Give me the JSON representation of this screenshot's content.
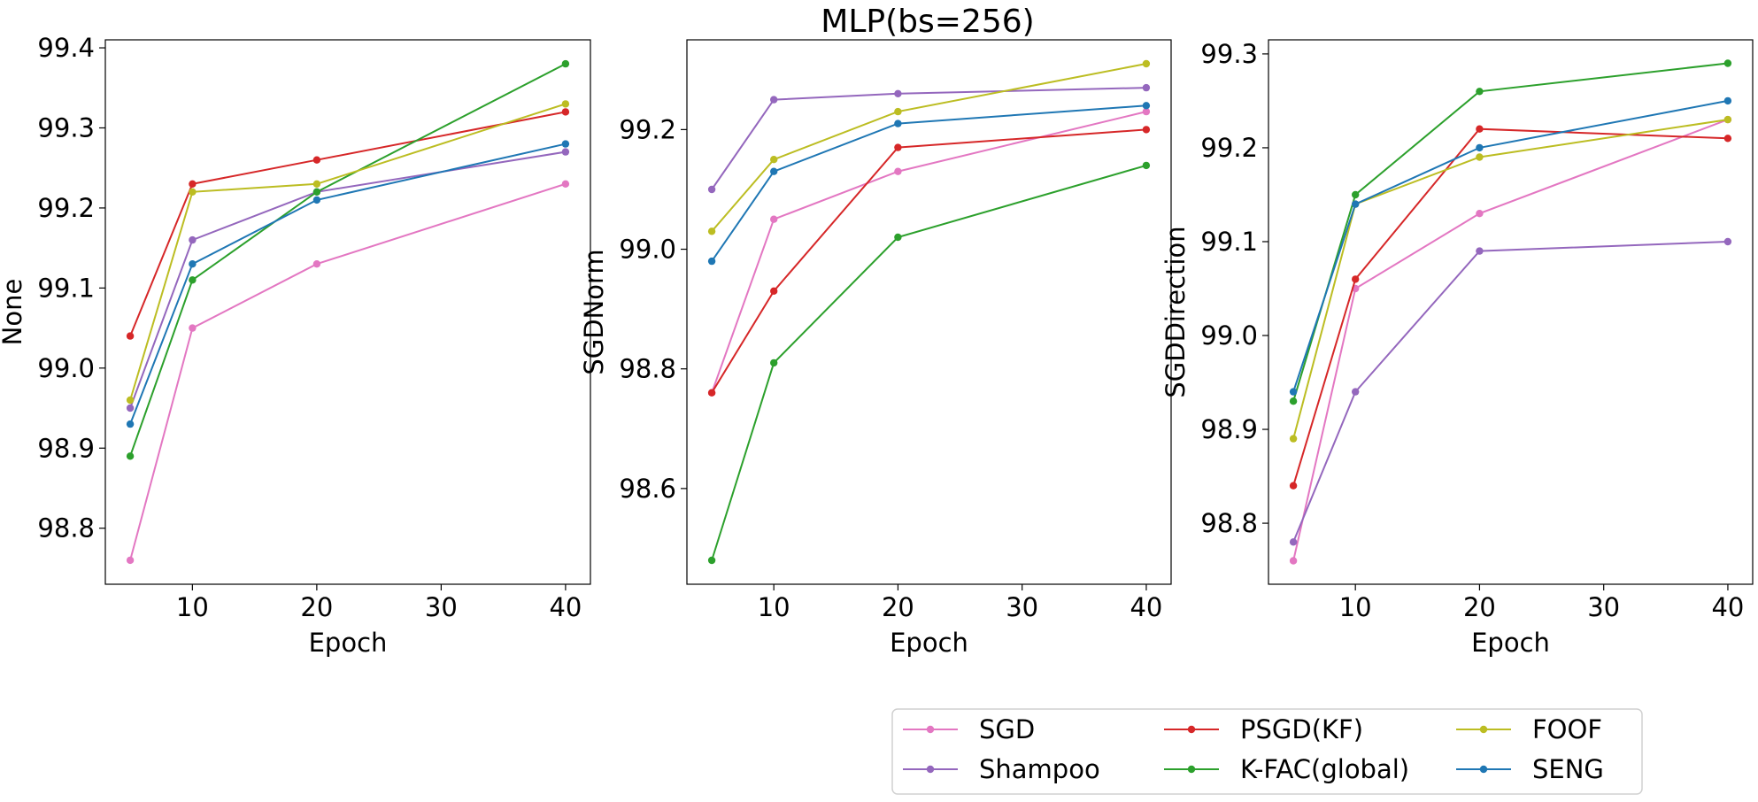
{
  "figure": {
    "title": "MLP(bs=256)"
  },
  "legend": {
    "placement": "bottom-right",
    "columns": 3
  },
  "chart_data": [
    {
      "type": "line",
      "xlabel": "Epoch",
      "ylabel": "None",
      "x": [
        5,
        10,
        20,
        40
      ],
      "xlim": [
        3,
        42
      ],
      "ylim": [
        98.73,
        99.41
      ],
      "xticks": [
        "10",
        "20",
        "30",
        "40"
      ],
      "yticks": [
        "98.8",
        "98.9",
        "99.0",
        "99.1",
        "99.2",
        "99.3",
        "99.4"
      ],
      "grid": false,
      "series": [
        {
          "name": "SGD",
          "color": "#e377c2",
          "values": [
            98.76,
            99.05,
            99.13,
            99.23
          ]
        },
        {
          "name": "Shampoo",
          "color": "#9467bd",
          "values": [
            98.95,
            99.16,
            99.22,
            99.27
          ]
        },
        {
          "name": "PSGD(KF)",
          "color": "#d62728",
          "values": [
            99.04,
            99.23,
            99.26,
            99.32
          ]
        },
        {
          "name": "K-FAC(global)",
          "color": "#2ca02c",
          "values": [
            98.89,
            99.11,
            99.22,
            99.38
          ]
        },
        {
          "name": "FOOF",
          "color": "#bcbd22",
          "values": [
            98.96,
            99.22,
            99.23,
            99.33
          ]
        },
        {
          "name": "SENG",
          "color": "#1f77b4",
          "values": [
            98.93,
            99.13,
            99.21,
            99.28
          ]
        }
      ]
    },
    {
      "type": "line",
      "xlabel": "Epoch",
      "ylabel": "SGDNorm",
      "x": [
        5,
        10,
        20,
        40
      ],
      "xlim": [
        3,
        42
      ],
      "ylim": [
        98.44,
        99.35
      ],
      "xticks": [
        "10",
        "20",
        "30",
        "40"
      ],
      "yticks": [
        "98.6",
        "98.8",
        "99.0",
        "99.2"
      ],
      "grid": false,
      "series": [
        {
          "name": "SGD",
          "color": "#e377c2",
          "values": [
            98.76,
            99.05,
            99.13,
            99.23
          ]
        },
        {
          "name": "Shampoo",
          "color": "#9467bd",
          "values": [
            99.1,
            99.25,
            99.26,
            99.27
          ]
        },
        {
          "name": "PSGD(KF)",
          "color": "#d62728",
          "values": [
            98.76,
            98.93,
            99.17,
            99.2
          ]
        },
        {
          "name": "K-FAC(global)",
          "color": "#2ca02c",
          "values": [
            98.48,
            98.81,
            99.02,
            99.14
          ]
        },
        {
          "name": "FOOF",
          "color": "#bcbd22",
          "values": [
            99.03,
            99.15,
            99.23,
            99.31
          ]
        },
        {
          "name": "SENG",
          "color": "#1f77b4",
          "values": [
            98.98,
            99.13,
            99.21,
            99.24
          ]
        }
      ]
    },
    {
      "type": "line",
      "xlabel": "Epoch",
      "ylabel": "SGDDirection",
      "x": [
        5,
        10,
        20,
        40
      ],
      "xlim": [
        3,
        42
      ],
      "ylim": [
        98.735,
        99.315
      ],
      "xticks": [
        "10",
        "20",
        "30",
        "40"
      ],
      "yticks": [
        "98.8",
        "98.9",
        "99.0",
        "99.1",
        "99.2",
        "99.3"
      ],
      "grid": false,
      "series": [
        {
          "name": "SGD",
          "color": "#e377c2",
          "values": [
            98.76,
            99.05,
            99.13,
            99.23
          ]
        },
        {
          "name": "Shampoo",
          "color": "#9467bd",
          "values": [
            98.78,
            98.94,
            99.09,
            99.1
          ]
        },
        {
          "name": "PSGD(KF)",
          "color": "#d62728",
          "values": [
            98.84,
            99.06,
            99.22,
            99.21
          ]
        },
        {
          "name": "K-FAC(global)",
          "color": "#2ca02c",
          "values": [
            98.93,
            99.15,
            99.26,
            99.29
          ]
        },
        {
          "name": "FOOF",
          "color": "#bcbd22",
          "values": [
            98.89,
            99.14,
            99.19,
            99.23
          ]
        },
        {
          "name": "SENG",
          "color": "#1f77b4",
          "values": [
            98.94,
            99.14,
            99.2,
            99.25
          ]
        }
      ]
    }
  ]
}
